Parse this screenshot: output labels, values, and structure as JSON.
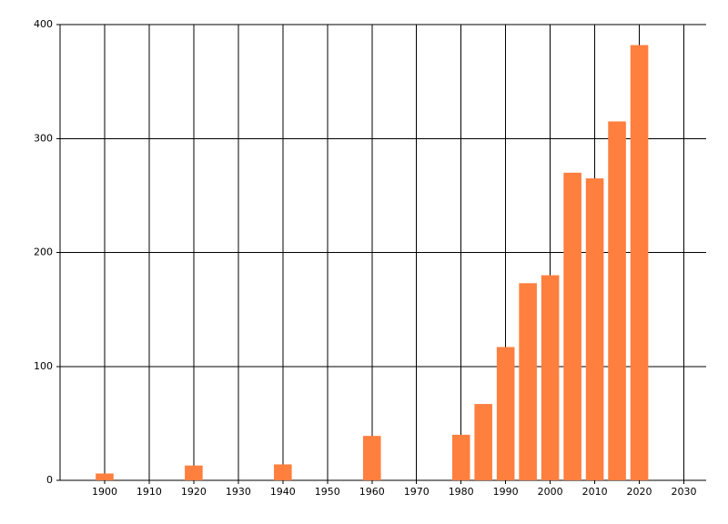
{
  "chart_data": {
    "type": "bar",
    "x": [
      1900,
      1920,
      1940,
      1960,
      1980,
      1985,
      1990,
      1995,
      2000,
      2005,
      2010,
      2015,
      2020
    ],
    "values": [
      6,
      13,
      14,
      39,
      40,
      67,
      117,
      173,
      180,
      270,
      265,
      315,
      382
    ],
    "color": "#ff7f3f",
    "xlim": [
      1890,
      2035
    ],
    "xticks": [
      1900,
      1910,
      1920,
      1930,
      1940,
      1950,
      1960,
      1970,
      1980,
      1990,
      2000,
      2010,
      2020,
      2030
    ],
    "ylim": [
      0,
      400
    ],
    "yticks": [
      0,
      100,
      200,
      300,
      400
    ],
    "grid": true
  }
}
